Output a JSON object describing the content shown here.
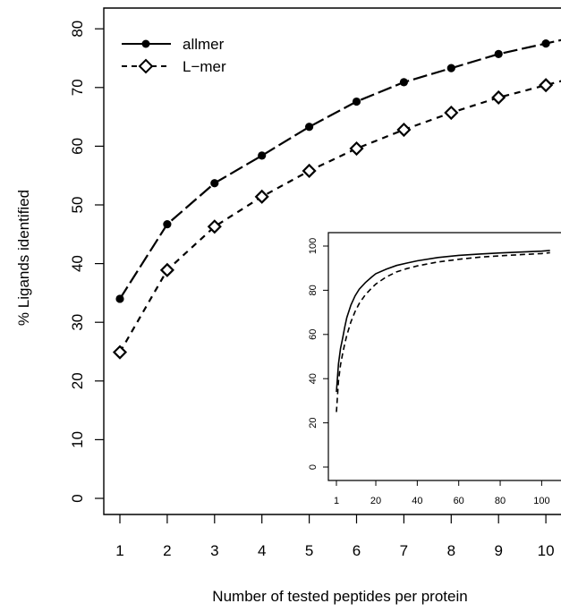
{
  "chart_data": [
    {
      "type": "line",
      "title": "",
      "xlabel": "Number of tested peptides per protein",
      "ylabel": "% Ligands identified",
      "xlim": [
        0.6,
        10.5
      ],
      "ylim": [
        -3,
        82
      ],
      "x_ticks": [
        1,
        2,
        3,
        4,
        5,
        6,
        7,
        8,
        9,
        10
      ],
      "y_ticks": [
        0,
        10,
        20,
        30,
        40,
        50,
        60,
        70,
        80
      ],
      "legend_position": "top-left",
      "grid": false,
      "series": [
        {
          "name": "allmer",
          "line_style": "long-dash",
          "marker": "filled-circle",
          "x": [
            1,
            2,
            3,
            4,
            5,
            6,
            7,
            8,
            9,
            10
          ],
          "values": [
            34.0,
            46.7,
            53.7,
            58.4,
            63.3,
            67.6,
            70.9,
            73.3,
            75.7,
            77.5
          ]
        },
        {
          "name": "L−mer",
          "line_style": "short-dash",
          "marker": "open-diamond",
          "x": [
            1,
            2,
            3,
            4,
            5,
            6,
            7,
            8,
            9,
            10
          ],
          "values": [
            24.9,
            38.9,
            46.3,
            51.4,
            55.8,
            59.6,
            62.8,
            65.7,
            68.3,
            70.4
          ]
        }
      ],
      "line_extension": {
        "x": 10.5,
        "allmer": 78.4,
        "lmer": 71.5
      }
    },
    {
      "type": "line",
      "title": "",
      "xlabel": "",
      "ylabel": "",
      "xlim": [
        -2,
        103
      ],
      "ylim": [
        -4,
        104
      ],
      "x_ticks": [
        1,
        20,
        40,
        60,
        80,
        100
      ],
      "y_ticks": [
        0,
        20,
        40,
        60,
        80,
        100
      ],
      "grid": false,
      "series": [
        {
          "name": "allmer",
          "line_style": "solid",
          "x": [
            1,
            2,
            3,
            4,
            5,
            6,
            8,
            10,
            12,
            15,
            18,
            20,
            25,
            30,
            35,
            40,
            50,
            60,
            70,
            80,
            90,
            100,
            104
          ],
          "values": [
            34,
            46.7,
            53.7,
            58.4,
            63.3,
            67.6,
            73.3,
            77.5,
            80.5,
            83.5,
            86,
            87.5,
            89.5,
            91.2,
            92.3,
            93.3,
            94.8,
            95.8,
            96.4,
            96.9,
            97.3,
            97.7,
            98
          ]
        },
        {
          "name": "L−mer",
          "line_style": "dashed",
          "x": [
            1,
            2,
            3,
            4,
            5,
            6,
            8,
            10,
            12,
            15,
            18,
            20,
            25,
            30,
            35,
            40,
            50,
            60,
            70,
            80,
            90,
            100,
            104
          ],
          "values": [
            24.9,
            38.9,
            46.3,
            51.4,
            55.8,
            59.6,
            65.7,
            70.4,
            74,
            78,
            81,
            82.8,
            86,
            88.3,
            89.8,
            91,
            92.8,
            94,
            95,
            95.6,
            96.1,
            96.6,
            97
          ]
        }
      ]
    }
  ]
}
